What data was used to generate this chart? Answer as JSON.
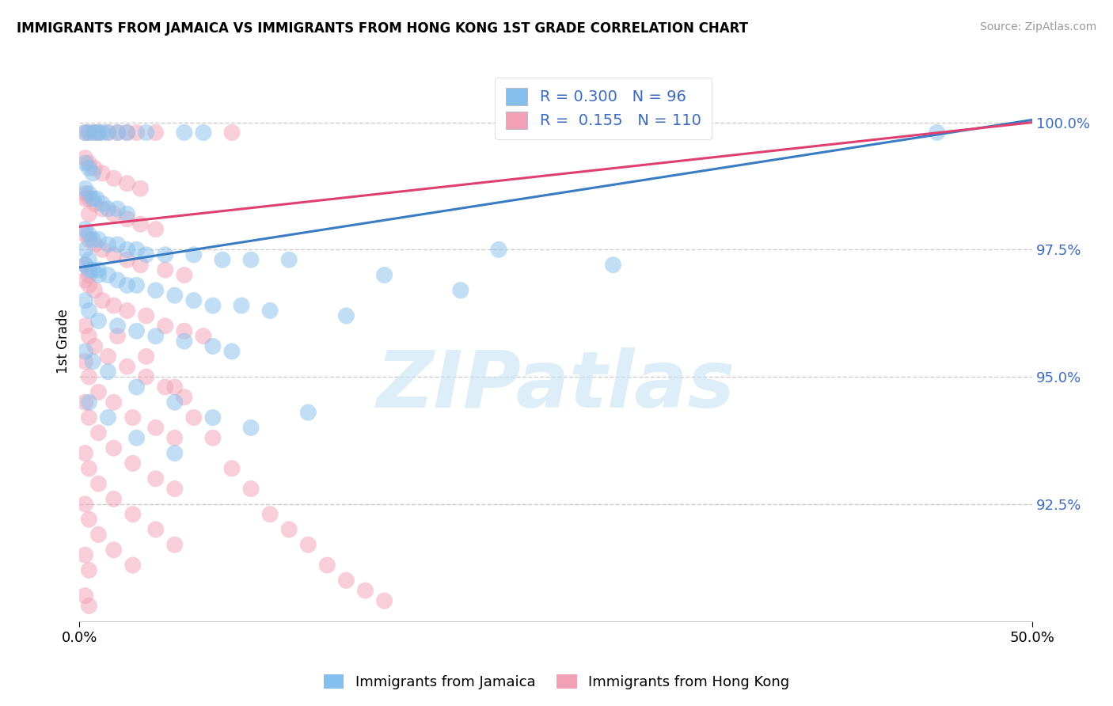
{
  "title": "IMMIGRANTS FROM JAMAICA VS IMMIGRANTS FROM HONG KONG 1ST GRADE CORRELATION CHART",
  "source": "Source: ZipAtlas.com",
  "ylabel": "1st Grade",
  "ytick_labels": [
    "92.5%",
    "95.0%",
    "97.5%",
    "100.0%"
  ],
  "ytick_values": [
    92.5,
    95.0,
    97.5,
    100.0
  ],
  "xmin": 0.0,
  "xmax": 50.0,
  "ymin": 90.2,
  "ymax": 101.2,
  "blue_R": 0.3,
  "blue_N": 96,
  "pink_R": 0.155,
  "pink_N": 110,
  "blue_color": "#85BFED",
  "pink_color": "#F2A0B5",
  "blue_line_color": "#3A7CC4",
  "pink_line_color": "#E04070",
  "blue_line_x0": 0.0,
  "blue_line_y0": 97.15,
  "blue_line_x1": 50.0,
  "blue_line_y1": 100.05,
  "pink_line_x0": 0.0,
  "pink_line_y0": 97.95,
  "pink_line_x1": 50.0,
  "pink_line_y1": 100.0,
  "legend_text_color": "#3B6BC0",
  "watermark": "ZIPatlas",
  "grid_color": "#CCCCCC",
  "blue_scatter": [
    [
      0.3,
      99.8
    ],
    [
      0.5,
      99.8
    ],
    [
      0.8,
      99.8
    ],
    [
      1.0,
      99.8
    ],
    [
      1.2,
      99.8
    ],
    [
      1.5,
      99.8
    ],
    [
      2.0,
      99.8
    ],
    [
      2.5,
      99.8
    ],
    [
      3.5,
      99.8
    ],
    [
      5.5,
      99.8
    ],
    [
      6.5,
      99.8
    ],
    [
      0.3,
      99.2
    ],
    [
      0.5,
      99.1
    ],
    [
      0.7,
      99.0
    ],
    [
      0.3,
      98.7
    ],
    [
      0.5,
      98.6
    ],
    [
      0.7,
      98.5
    ],
    [
      0.9,
      98.5
    ],
    [
      1.2,
      98.4
    ],
    [
      1.5,
      98.3
    ],
    [
      2.0,
      98.3
    ],
    [
      2.5,
      98.2
    ],
    [
      0.3,
      97.9
    ],
    [
      0.5,
      97.8
    ],
    [
      0.7,
      97.7
    ],
    [
      1.0,
      97.7
    ],
    [
      1.5,
      97.6
    ],
    [
      2.0,
      97.6
    ],
    [
      2.5,
      97.5
    ],
    [
      3.0,
      97.5
    ],
    [
      3.5,
      97.4
    ],
    [
      4.5,
      97.4
    ],
    [
      6.0,
      97.4
    ],
    [
      7.5,
      97.3
    ],
    [
      9.0,
      97.3
    ],
    [
      11.0,
      97.3
    ],
    [
      0.3,
      97.2
    ],
    [
      0.5,
      97.1
    ],
    [
      0.7,
      97.1
    ],
    [
      1.0,
      97.0
    ],
    [
      1.5,
      97.0
    ],
    [
      2.0,
      96.9
    ],
    [
      2.5,
      96.8
    ],
    [
      3.0,
      96.8
    ],
    [
      4.0,
      96.7
    ],
    [
      5.0,
      96.6
    ],
    [
      6.0,
      96.5
    ],
    [
      7.0,
      96.4
    ],
    [
      8.5,
      96.4
    ],
    [
      10.0,
      96.3
    ],
    [
      0.3,
      96.5
    ],
    [
      0.5,
      96.3
    ],
    [
      1.0,
      96.1
    ],
    [
      2.0,
      96.0
    ],
    [
      3.0,
      95.9
    ],
    [
      4.0,
      95.8
    ],
    [
      5.5,
      95.7
    ],
    [
      7.0,
      95.6
    ],
    [
      8.0,
      95.5
    ],
    [
      14.0,
      96.2
    ],
    [
      20.0,
      96.7
    ],
    [
      28.0,
      97.2
    ],
    [
      45.0,
      99.8
    ],
    [
      0.3,
      95.5
    ],
    [
      0.7,
      95.3
    ],
    [
      1.5,
      95.1
    ],
    [
      3.0,
      94.8
    ],
    [
      5.0,
      94.5
    ],
    [
      7.0,
      94.2
    ],
    [
      9.0,
      94.0
    ],
    [
      12.0,
      94.3
    ],
    [
      0.5,
      94.5
    ],
    [
      1.5,
      94.2
    ],
    [
      3.0,
      93.8
    ],
    [
      5.0,
      93.5
    ],
    [
      0.3,
      97.5
    ],
    [
      0.5,
      97.3
    ],
    [
      1.0,
      97.1
    ],
    [
      16.0,
      97.0
    ],
    [
      22.0,
      97.5
    ]
  ],
  "pink_scatter": [
    [
      0.3,
      99.8
    ],
    [
      0.5,
      99.8
    ],
    [
      0.8,
      99.8
    ],
    [
      1.0,
      99.8
    ],
    [
      1.5,
      99.8
    ],
    [
      2.0,
      99.8
    ],
    [
      2.5,
      99.8
    ],
    [
      3.0,
      99.8
    ],
    [
      4.0,
      99.8
    ],
    [
      8.0,
      99.8
    ],
    [
      0.3,
      99.3
    ],
    [
      0.5,
      99.2
    ],
    [
      0.8,
      99.1
    ],
    [
      1.2,
      99.0
    ],
    [
      1.8,
      98.9
    ],
    [
      2.5,
      98.8
    ],
    [
      3.2,
      98.7
    ],
    [
      0.3,
      98.6
    ],
    [
      0.5,
      98.5
    ],
    [
      0.8,
      98.4
    ],
    [
      1.2,
      98.3
    ],
    [
      1.8,
      98.2
    ],
    [
      2.5,
      98.1
    ],
    [
      3.2,
      98.0
    ],
    [
      4.0,
      97.9
    ],
    [
      0.3,
      97.8
    ],
    [
      0.5,
      97.7
    ],
    [
      0.8,
      97.6
    ],
    [
      1.2,
      97.5
    ],
    [
      1.8,
      97.4
    ],
    [
      2.5,
      97.3
    ],
    [
      3.2,
      97.2
    ],
    [
      4.5,
      97.1
    ],
    [
      5.5,
      97.0
    ],
    [
      0.3,
      96.9
    ],
    [
      0.5,
      96.8
    ],
    [
      0.8,
      96.7
    ],
    [
      1.2,
      96.5
    ],
    [
      1.8,
      96.4
    ],
    [
      2.5,
      96.3
    ],
    [
      3.5,
      96.2
    ],
    [
      4.5,
      96.0
    ],
    [
      5.5,
      95.9
    ],
    [
      6.5,
      95.8
    ],
    [
      0.3,
      96.0
    ],
    [
      0.5,
      95.8
    ],
    [
      0.8,
      95.6
    ],
    [
      1.5,
      95.4
    ],
    [
      2.5,
      95.2
    ],
    [
      3.5,
      95.0
    ],
    [
      4.5,
      94.8
    ],
    [
      5.5,
      94.6
    ],
    [
      0.3,
      95.3
    ],
    [
      0.5,
      95.0
    ],
    [
      1.0,
      94.7
    ],
    [
      1.8,
      94.5
    ],
    [
      2.8,
      94.2
    ],
    [
      4.0,
      94.0
    ],
    [
      5.0,
      93.8
    ],
    [
      0.3,
      94.5
    ],
    [
      0.5,
      94.2
    ],
    [
      1.0,
      93.9
    ],
    [
      1.8,
      93.6
    ],
    [
      2.8,
      93.3
    ],
    [
      4.0,
      93.0
    ],
    [
      5.0,
      92.8
    ],
    [
      0.3,
      93.5
    ],
    [
      0.5,
      93.2
    ],
    [
      1.0,
      92.9
    ],
    [
      1.8,
      92.6
    ],
    [
      2.8,
      92.3
    ],
    [
      4.0,
      92.0
    ],
    [
      5.0,
      91.7
    ],
    [
      0.3,
      92.5
    ],
    [
      0.5,
      92.2
    ],
    [
      1.0,
      91.9
    ],
    [
      1.8,
      91.6
    ],
    [
      2.8,
      91.3
    ],
    [
      0.3,
      91.5
    ],
    [
      0.5,
      91.2
    ],
    [
      0.3,
      90.7
    ],
    [
      0.5,
      90.5
    ],
    [
      0.3,
      98.5
    ],
    [
      0.5,
      98.2
    ],
    [
      0.3,
      97.2
    ],
    [
      0.5,
      97.0
    ],
    [
      2.0,
      95.8
    ],
    [
      3.5,
      95.4
    ],
    [
      5.0,
      94.8
    ],
    [
      6.0,
      94.2
    ],
    [
      7.0,
      93.8
    ],
    [
      8.0,
      93.2
    ],
    [
      9.0,
      92.8
    ],
    [
      10.0,
      92.3
    ],
    [
      11.0,
      92.0
    ],
    [
      12.0,
      91.7
    ],
    [
      13.0,
      91.3
    ],
    [
      14.0,
      91.0
    ],
    [
      15.0,
      90.8
    ],
    [
      16.0,
      90.6
    ]
  ]
}
